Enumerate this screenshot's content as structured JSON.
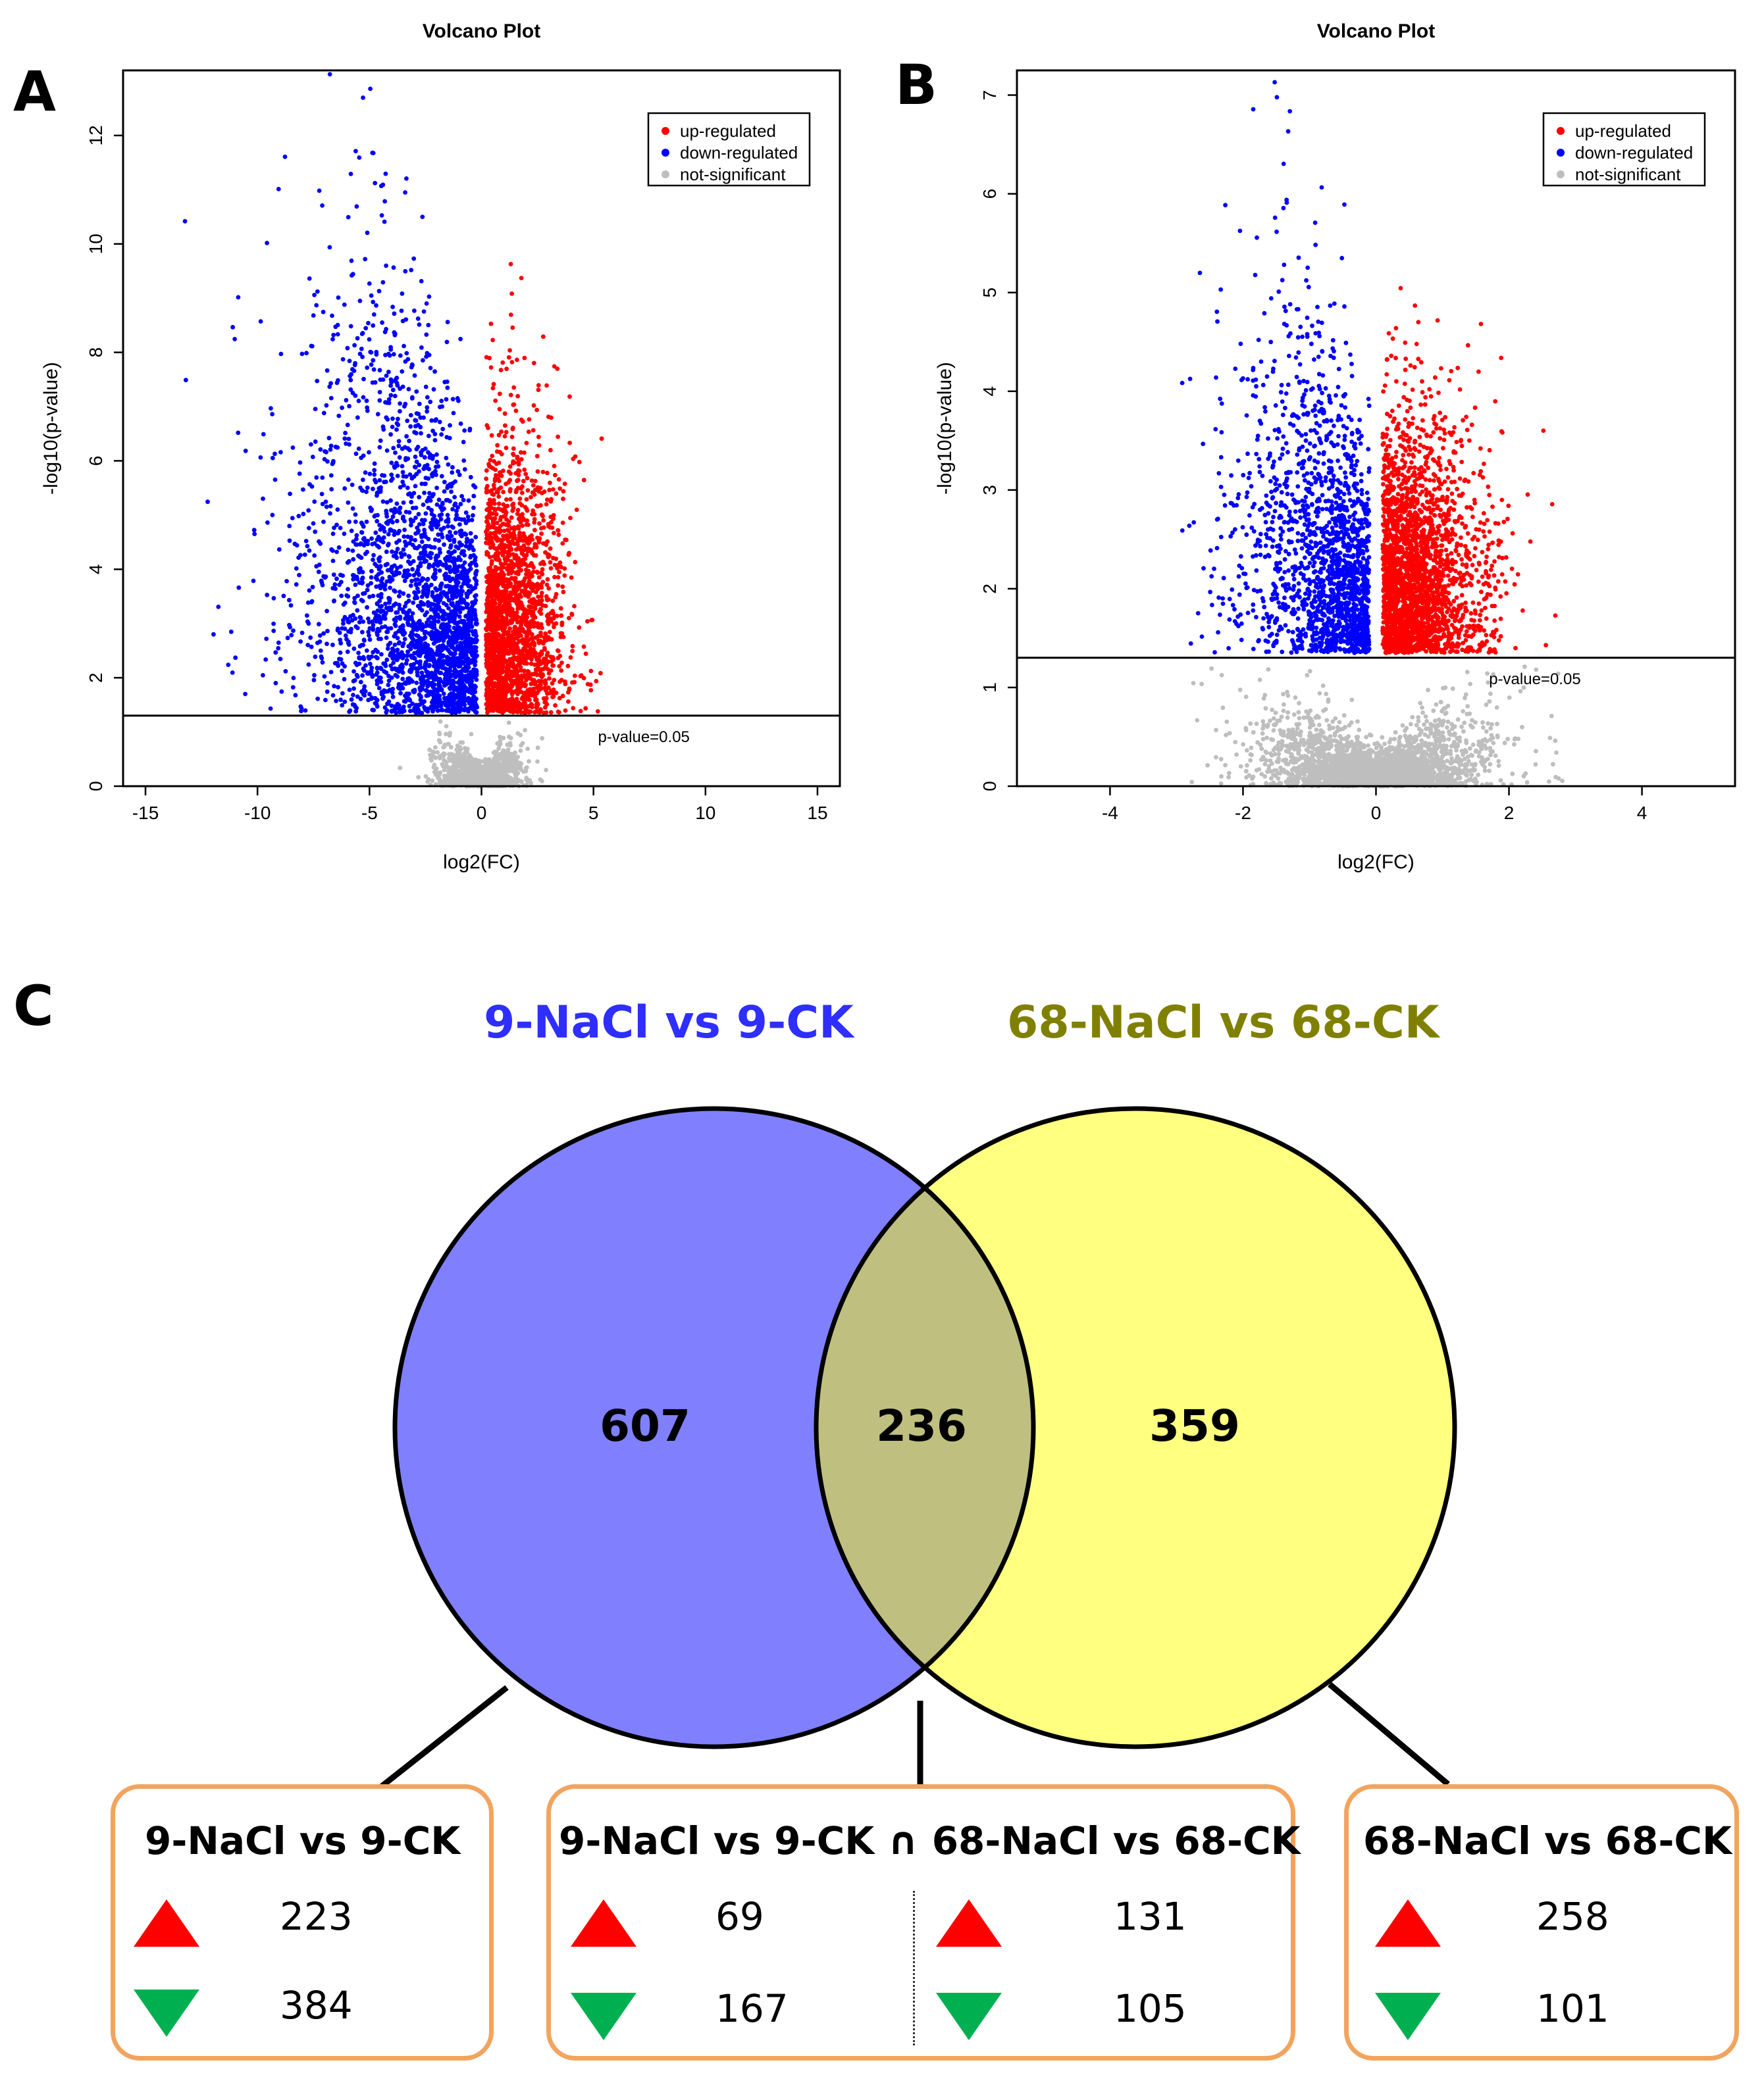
{
  "panel_labels": {
    "a": "A",
    "b": "B",
    "c": "C"
  },
  "chart_data": [
    {
      "type": "scatter",
      "id": "A",
      "title": "Volcano Plot",
      "xlabel": "log2(FC)",
      "ylabel": "-log10(p-value)",
      "xlim": [
        -16,
        16
      ],
      "ylim": [
        0,
        13.2
      ],
      "xticks": [
        "-15",
        "-10",
        "-5",
        "0",
        "5",
        "10",
        "15"
      ],
      "yticks": [
        "0",
        "2",
        "4",
        "6",
        "8",
        "10",
        "12"
      ],
      "threshold": {
        "y": 1.301,
        "label": "p-value=0.05"
      },
      "legend": {
        "position": "top-right",
        "entries": [
          "up-regulated",
          "down-regulated",
          "not-significant"
        ]
      },
      "colors": {
        "up": "#FF0000",
        "down": "#0000FF",
        "ns": "#BEBEBE"
      },
      "series": [
        {
          "name": "up-regulated",
          "description": "x>0, p<0.05"
        },
        {
          "name": "down-regulated",
          "description": "x<0, p<0.05"
        },
        {
          "name": "not-significant",
          "description": "p>=0.05"
        }
      ]
    },
    {
      "type": "scatter",
      "id": "B",
      "title": "Volcano Plot",
      "xlabel": "log2(FC)",
      "ylabel": "-log10(p-value)",
      "xlim": [
        -5.4,
        5.4
      ],
      "ylim": [
        0,
        7.25
      ],
      "xticks": [
        "-4",
        "-2",
        "0",
        "2",
        "4"
      ],
      "yticks": [
        "0",
        "1",
        "2",
        "3",
        "4",
        "5",
        "6",
        "7"
      ],
      "threshold": {
        "y": 1.301,
        "label": "p-value=0.05"
      },
      "legend": {
        "position": "top-right",
        "entries": [
          "up-regulated",
          "down-regulated",
          "not-significant"
        ]
      },
      "colors": {
        "up": "#FF0000",
        "down": "#0000FF",
        "ns": "#BEBEBE"
      },
      "series": [
        {
          "name": "up-regulated",
          "description": "x>0, p<0.05"
        },
        {
          "name": "down-regulated",
          "description": "x<0, p<0.05"
        },
        {
          "name": "not-significant",
          "description": "p>=0.05"
        }
      ]
    },
    {
      "type": "venn",
      "id": "C",
      "sets": [
        {
          "name": "9-NaCl vs 9-CK",
          "color": "#8080FF",
          "title_color": "#2E2EFF",
          "only": "607"
        },
        {
          "name": "68-NaCl vs 68-CK",
          "color": "#FFFF80",
          "title_color": "#808000",
          "only": "359"
        }
      ],
      "intersection": "236",
      "intersection_color": "#BFBF80"
    }
  ],
  "boxes": {
    "left": {
      "title": "9-NaCl vs 9-CK",
      "up": "223",
      "down": "384"
    },
    "middle": {
      "title": "9-NaCl vs 9-CK ∩ 68-NaCl vs 68-CK",
      "up_a": "69",
      "down_a": "167",
      "up_b": "131",
      "down_b": "105"
    },
    "right": {
      "title": "68-NaCl vs 68-CK",
      "up": "258",
      "down": "101"
    }
  }
}
